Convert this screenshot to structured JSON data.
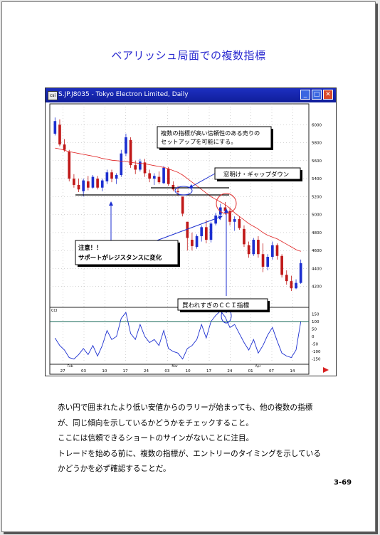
{
  "page_title": "ベアリッシュ局面での複数指標",
  "window": {
    "title": "S.JP.J8035 - Tokyo Electron Limited, Daily",
    "icon_text": "csi",
    "min_label": "_",
    "max_label": "□",
    "close_label": "✕"
  },
  "chart_data": {
    "type": "candlestick",
    "price_axis_ticks": [
      "6000",
      "5800",
      "5600",
      "5400",
      "5200",
      "5000",
      "4800",
      "4600",
      "4400",
      "4200"
    ],
    "indicator_axis_ticks": [
      "150",
      "100",
      "50",
      "0",
      "-50",
      "-100",
      "-150"
    ],
    "indicator_label": "CCI",
    "date_ticks": [
      "27",
      "03",
      "10",
      "17",
      "24",
      "03",
      "10",
      "17",
      "24",
      "01",
      "07",
      "14"
    ],
    "month_labels": [
      "Feb",
      "Mar",
      "Apr"
    ],
    "ylim": [
      4000,
      6200
    ],
    "cci_ylim": [
      -175,
      175
    ],
    "candles": [
      {
        "o": 5900,
        "h": 6080,
        "l": 5880,
        "c": 6040
      },
      {
        "o": 6000,
        "h": 6060,
        "l": 5760,
        "c": 5780
      },
      {
        "o": 5780,
        "h": 5840,
        "l": 5700,
        "c": 5720
      },
      {
        "o": 5700,
        "h": 5720,
        "l": 5370,
        "c": 5400
      },
      {
        "o": 5400,
        "h": 5450,
        "l": 5300,
        "c": 5330
      },
      {
        "o": 5330,
        "h": 5400,
        "l": 5250,
        "c": 5280
      },
      {
        "o": 5260,
        "h": 5400,
        "l": 5200,
        "c": 5380
      },
      {
        "o": 5370,
        "h": 5430,
        "l": 5270,
        "c": 5300
      },
      {
        "o": 5300,
        "h": 5440,
        "l": 5290,
        "c": 5420
      },
      {
        "o": 5400,
        "h": 5430,
        "l": 5280,
        "c": 5300
      },
      {
        "o": 5300,
        "h": 5400,
        "l": 5260,
        "c": 5380
      },
      {
        "o": 5370,
        "h": 5500,
        "l": 5340,
        "c": 5470
      },
      {
        "o": 5470,
        "h": 5500,
        "l": 5360,
        "c": 5400
      },
      {
        "o": 5400,
        "h": 5460,
        "l": 5340,
        "c": 5440
      },
      {
        "o": 5440,
        "h": 5720,
        "l": 5420,
        "c": 5680
      },
      {
        "o": 5680,
        "h": 5900,
        "l": 5650,
        "c": 5860
      },
      {
        "o": 5830,
        "h": 5860,
        "l": 5520,
        "c": 5550
      },
      {
        "o": 5550,
        "h": 5600,
        "l": 5450,
        "c": 5500
      },
      {
        "o": 5500,
        "h": 5620,
        "l": 5480,
        "c": 5590
      },
      {
        "o": 5580,
        "h": 5620,
        "l": 5420,
        "c": 5460
      },
      {
        "o": 5460,
        "h": 5500,
        "l": 5360,
        "c": 5400
      },
      {
        "o": 5400,
        "h": 5460,
        "l": 5330,
        "c": 5430
      },
      {
        "o": 5420,
        "h": 5480,
        "l": 5340,
        "c": 5360
      },
      {
        "o": 5350,
        "h": 5540,
        "l": 5340,
        "c": 5520
      },
      {
        "o": 5510,
        "h": 5530,
        "l": 5320,
        "c": 5340
      },
      {
        "o": 5330,
        "h": 5370,
        "l": 5260,
        "c": 5280
      },
      {
        "o": 5260,
        "h": 5320,
        "l": 5210,
        "c": 5250
      },
      {
        "o": 5200,
        "h": 5200,
        "l": 4980,
        "c": 5010
      },
      {
        "o": 4920,
        "h": 4920,
        "l": 4600,
        "c": 4740
      },
      {
        "o": 4720,
        "h": 4800,
        "l": 4600,
        "c": 4650
      },
      {
        "o": 4640,
        "h": 4780,
        "l": 4620,
        "c": 4760
      },
      {
        "o": 4760,
        "h": 4880,
        "l": 4700,
        "c": 4860
      },
      {
        "o": 4860,
        "h": 4940,
        "l": 4680,
        "c": 4720
      },
      {
        "o": 4720,
        "h": 4920,
        "l": 4690,
        "c": 4900
      },
      {
        "o": 4900,
        "h": 5020,
        "l": 4880,
        "c": 4990
      },
      {
        "o": 5000,
        "h": 5120,
        "l": 4940,
        "c": 5080
      },
      {
        "o": 5080,
        "h": 5140,
        "l": 5000,
        "c": 5040
      },
      {
        "o": 5040,
        "h": 5080,
        "l": 4880,
        "c": 4920
      },
      {
        "o": 4920,
        "h": 4980,
        "l": 4820,
        "c": 4950
      },
      {
        "o": 4950,
        "h": 4980,
        "l": 4830,
        "c": 4850
      },
      {
        "o": 4840,
        "h": 4880,
        "l": 4640,
        "c": 4670
      },
      {
        "o": 4660,
        "h": 4700,
        "l": 4520,
        "c": 4560
      },
      {
        "o": 4560,
        "h": 4740,
        "l": 4540,
        "c": 4720
      },
      {
        "o": 4720,
        "h": 4760,
        "l": 4520,
        "c": 4560
      },
      {
        "o": 4560,
        "h": 4680,
        "l": 4360,
        "c": 4420
      },
      {
        "o": 4420,
        "h": 4560,
        "l": 4380,
        "c": 4530
      },
      {
        "o": 4530,
        "h": 4700,
        "l": 4500,
        "c": 4660
      },
      {
        "o": 4660,
        "h": 4680,
        "l": 4500,
        "c": 4540
      },
      {
        "o": 4540,
        "h": 4560,
        "l": 4300,
        "c": 4330
      },
      {
        "o": 4330,
        "h": 4380,
        "l": 4220,
        "c": 4260
      },
      {
        "o": 4260,
        "h": 4320,
        "l": 4150,
        "c": 4180
      },
      {
        "o": 4180,
        "h": 4280,
        "l": 4170,
        "c": 4240
      },
      {
        "o": 4240,
        "h": 4500,
        "l": 4230,
        "c": 4460
      }
    ],
    "ma": [
      5740,
      5730,
      5715,
      5700,
      5690,
      5680,
      5670,
      5660,
      5650,
      5640,
      5625,
      5615,
      5605,
      5600,
      5595,
      5590,
      5580,
      5575,
      5570,
      5565,
      5555,
      5545,
      5535,
      5525,
      5510,
      5490,
      5470,
      5440,
      5400,
      5360,
      5320,
      5280,
      5240,
      5200,
      5170,
      5140,
      5110,
      5070,
      5020,
      4980,
      4940,
      4900,
      4870,
      4840,
      4800,
      4770,
      4750,
      4730,
      4700,
      4670,
      4640,
      4610,
      4590
    ],
    "cci": [
      -10,
      -60,
      -90,
      -140,
      -150,
      -120,
      -80,
      -120,
      -60,
      -130,
      -60,
      40,
      -20,
      0,
      120,
      160,
      20,
      -20,
      80,
      0,
      -40,
      -20,
      -60,
      40,
      -80,
      -100,
      -110,
      -150,
      -80,
      -60,
      -20,
      80,
      -10,
      100,
      140,
      170,
      130,
      60,
      80,
      20,
      -40,
      -90,
      -20,
      -110,
      -60,
      10,
      60,
      -30,
      -110,
      -130,
      -140,
      -90,
      100
    ],
    "support_price": 5200,
    "resistance_line_price": 5280
  },
  "annotations": {
    "top_box": "複数の指標が高い信頼性のある売りの\nセットアップを可能にする。",
    "gap_box": "窓明け・ギャップダウン",
    "support_box_line1": "注意！！",
    "support_box_line2": "サポートがレジスタンスに変化",
    "cci_box": "買われすぎのＣＣＩ指標"
  },
  "body": {
    "lines": [
      "赤い円で囲まれたより低い安値からのラリーが始まっても、他の複数の指標",
      "が、同じ傾向を示しているかどうかをチェックすること。",
      "ここには信頼できるショートのサインがないことに注目。",
      "トレードを始める前に、複数の指標が、エントリーのタイミングを示している",
      "かどうかを必ず確認することだ。"
    ]
  },
  "page_number": "3-69",
  "colors": {
    "title": "#2a2ad0",
    "bull_candle": "#1c2fd0",
    "bear_candle": "#c01818",
    "ma_line": "#e02020",
    "cci_line": "#1c2fd0",
    "annotation_arrow": "#1c2fd0",
    "circle_red": "#e03030"
  }
}
